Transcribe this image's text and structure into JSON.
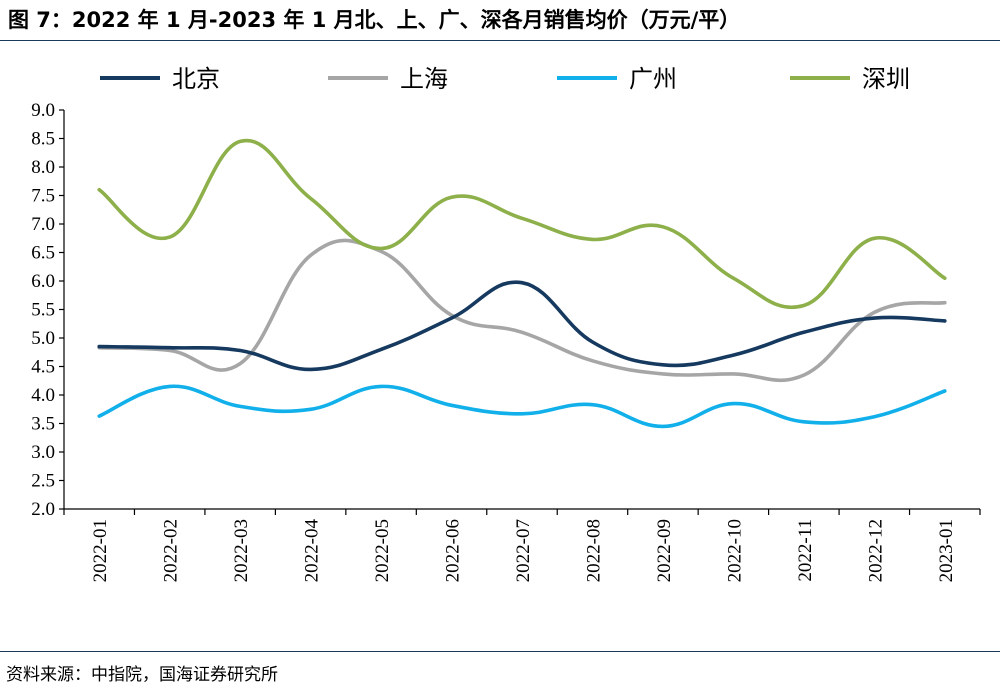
{
  "title": "图 7：2022 年 1 月-2023 年 1 月北、上、广、深各月销售均价（万元/平）",
  "source": "资料来源：中指院，国海证券研究所",
  "chart_data": {
    "type": "line",
    "categories": [
      "2022-01",
      "2022-02",
      "2022-03",
      "2022-04",
      "2022-05",
      "2022-06",
      "2022-07",
      "2022-08",
      "2022-09",
      "2022-10",
      "2022-11",
      "2022-12",
      "2023-01"
    ],
    "ylim": [
      2.0,
      9.0
    ],
    "yticks": [
      "9.0",
      "8.5",
      "8.0",
      "7.5",
      "7.0",
      "6.5",
      "6.0",
      "5.5",
      "5.0",
      "4.5",
      "4.0",
      "3.5",
      "3.0",
      "2.5",
      "2.0"
    ],
    "legend_position": "top",
    "grid": false,
    "series": [
      {
        "name": "北京",
        "color": "#163a5f",
        "values": [
          4.85,
          4.83,
          4.78,
          4.45,
          4.8,
          5.35,
          5.97,
          4.93,
          4.53,
          4.7,
          5.1,
          5.35,
          5.3
        ]
      },
      {
        "name": "上海",
        "color": "#a6a6a6",
        "values": [
          4.83,
          4.78,
          4.55,
          6.45,
          6.52,
          5.4,
          5.1,
          4.6,
          4.37,
          4.37,
          4.35,
          5.45,
          5.62
        ]
      },
      {
        "name": "广州",
        "color": "#12b0ea",
        "values": [
          3.63,
          4.15,
          3.8,
          3.75,
          4.15,
          3.82,
          3.67,
          3.83,
          3.45,
          3.85,
          3.53,
          3.62,
          4.07
        ]
      },
      {
        "name": "深圳",
        "color": "#8db04a",
        "values": [
          7.6,
          6.77,
          8.45,
          7.45,
          6.57,
          7.47,
          7.1,
          6.73,
          6.95,
          6.05,
          5.57,
          6.75,
          6.05
        ]
      }
    ]
  }
}
